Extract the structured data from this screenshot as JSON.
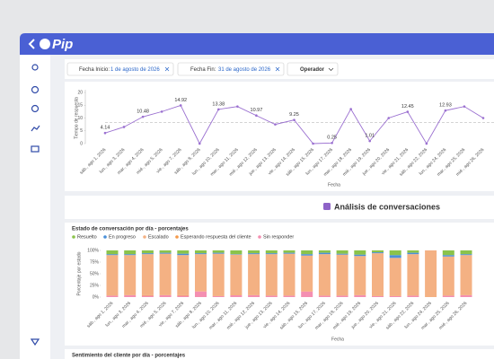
{
  "app": {
    "brand": "Pip"
  },
  "filters": {
    "start_label": "Fecha Inicio:",
    "start_value": "1 de agosto de 2026",
    "end_label": "Fecha Fin:",
    "end_value": "31 de agosto de 2026",
    "operator": "Operador"
  },
  "section_title": "Análisis de conversaciones",
  "next_card_title": "Sentimiento del cliente por día - porcentajes",
  "chart_data": [
    {
      "type": "line",
      "ylabel": "Tiempo de respuesta",
      "xlabel": "Fecha",
      "color": "#9a6fd0",
      "categories": [
        "sáb., ago 1, 2026",
        "lun., ago 3, 2026",
        "mar., ago 4, 2026",
        "mié., ago 5, 2026",
        "vie., ago 7, 2026",
        "sáb., ago 8, 2026",
        "lun., ago 10, 2026",
        "mar., ago 11, 2026",
        "mié., ago 12, 2026",
        "jue., ago 13, 2026",
        "vie., ago 14, 2026",
        "sáb., ago 15, 2026",
        "lun., ago 17, 2026",
        "mar., ago 18, 2026",
        "mié., ago 19, 2026",
        "jue., ago 20, 2026",
        "vie., ago 21, 2026",
        "sáb., ago 22, 2026",
        "lun., ago 24, 2026",
        "mar., ago 25, 2026",
        "mié., ago 26, 2026"
      ],
      "values": [
        4.14,
        6.5,
        10.48,
        12.5,
        14.92,
        0,
        13.38,
        14.5,
        10.97,
        7.5,
        9.25,
        0,
        0.25,
        13.5,
        1.01,
        10,
        12.45,
        0,
        12.93,
        14.5,
        10
      ],
      "value_labels": [
        "4.14",
        null,
        "10.48",
        null,
        "14.92",
        null,
        "13.38",
        null,
        "10.97",
        null,
        "9.25",
        null,
        "0.25",
        null,
        "1.01",
        null,
        "12.45",
        null,
        "12.93",
        null,
        null
      ],
      "reference_line": 8.3,
      "ylim": [
        0,
        20
      ],
      "yticks": [
        0,
        5,
        10,
        15,
        20
      ]
    },
    {
      "type": "stacked_bar",
      "title": "Estado de conversación por día - porcentajes",
      "ylabel": "Porcentaje por estado",
      "xlabel": "Fecha",
      "categories": [
        "sáb., ago 1, 2026",
        "lun., ago 3, 2026",
        "mar., ago 4, 2026",
        "mié., ago 5, 2026",
        "vie., ago 7, 2026",
        "sáb., ago 8, 2026",
        "lun., ago 10, 2026",
        "mar., ago 11, 2026",
        "mié., ago 12, 2026",
        "jue., ago 13, 2026",
        "vie., ago 14, 2026",
        "sáb., ago 15, 2026",
        "lun., ago 17, 2026",
        "mar., ago 18, 2026",
        "mié., ago 19, 2026",
        "jue., ago 20, 2026",
        "vie., ago 21, 2026",
        "sáb., ago 22, 2026",
        "lun., ago 24, 2026",
        "mar., ago 25, 2026",
        "mié., ago 26, 2026"
      ],
      "series": [
        {
          "name": "Resuelto",
          "color": "#8bc34a",
          "values": [
            8,
            8,
            6,
            5,
            7,
            6,
            5,
            8,
            6,
            6,
            5,
            8,
            5,
            7,
            9,
            4,
            10,
            5,
            0,
            10,
            8
          ]
        },
        {
          "name": "En progreso",
          "color": "#4a90d9",
          "values": [
            2,
            2,
            2,
            2,
            3,
            2,
            2,
            1,
            2,
            2,
            2,
            3,
            3,
            2,
            3,
            2,
            6,
            3,
            0,
            3,
            2
          ]
        },
        {
          "name": "Escalado",
          "color": "#f4b183",
          "values": [
            87,
            86,
            88,
            89,
            86,
            80,
            91,
            86,
            88,
            89,
            90,
            76,
            89,
            88,
            84,
            92,
            82,
            89,
            100,
            84,
            86
          ]
        },
        {
          "name": "Esperando respuesta del cliente",
          "color": "#f59a4a",
          "values": [
            0,
            0,
            1,
            0,
            1,
            0,
            0,
            1,
            0,
            0,
            0,
            1,
            0,
            0,
            0,
            0,
            0,
            0,
            0,
            0,
            0
          ]
        },
        {
          "name": "Sin responder",
          "color": "#f48fb1",
          "values": [
            3,
            4,
            3,
            4,
            3,
            12,
            2,
            4,
            4,
            3,
            3,
            12,
            3,
            3,
            4,
            2,
            2,
            3,
            0,
            3,
            4
          ]
        }
      ],
      "ylim": [
        0,
        100
      ],
      "yticks": [
        {
          "value": 0,
          "label": "0%"
        },
        {
          "value": 25,
          "label": "25%"
        },
        {
          "value": 50,
          "label": "50%"
        },
        {
          "value": 75,
          "label": "75%"
        },
        {
          "value": 100,
          "label": "100%"
        }
      ]
    }
  ]
}
